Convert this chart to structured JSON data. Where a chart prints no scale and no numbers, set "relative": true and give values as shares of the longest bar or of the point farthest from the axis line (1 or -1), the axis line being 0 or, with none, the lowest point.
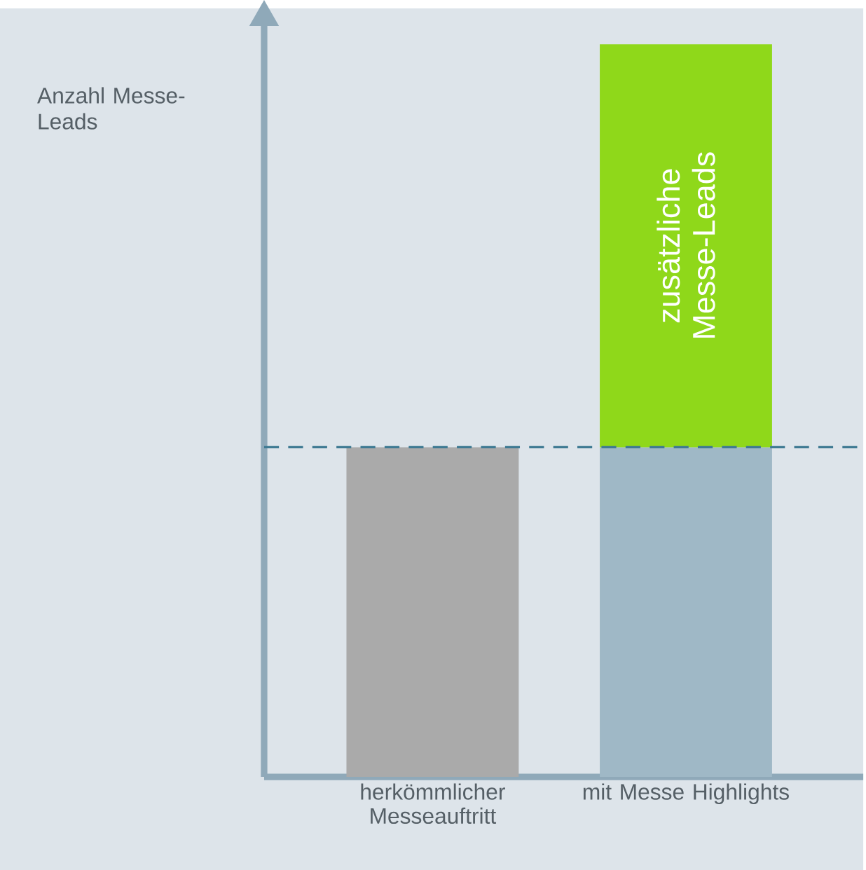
{
  "chart_data": {
    "type": "bar",
    "ylabel": "Anzahl Messe-Leads",
    "categories": [
      "herkömmlicher Messeauftritt",
      "mit Messe Highlights"
    ],
    "stacked": true,
    "relative": true,
    "series": [
      {
        "colors": [
          "#aaaaaa",
          "#9fb8c6"
        ],
        "values": [
          0.45,
          0.45
        ]
      },
      {
        "color": "#8fd81a",
        "values": [
          null,
          0.55
        ]
      }
    ],
    "ref_lines": [
      {
        "axis": "y",
        "value": 0.45,
        "color": "#3f7a93",
        "line_style": "dashed"
      }
    ],
    "annotations": [
      "zusätzliche Messe-Leads"
    ]
  }
}
